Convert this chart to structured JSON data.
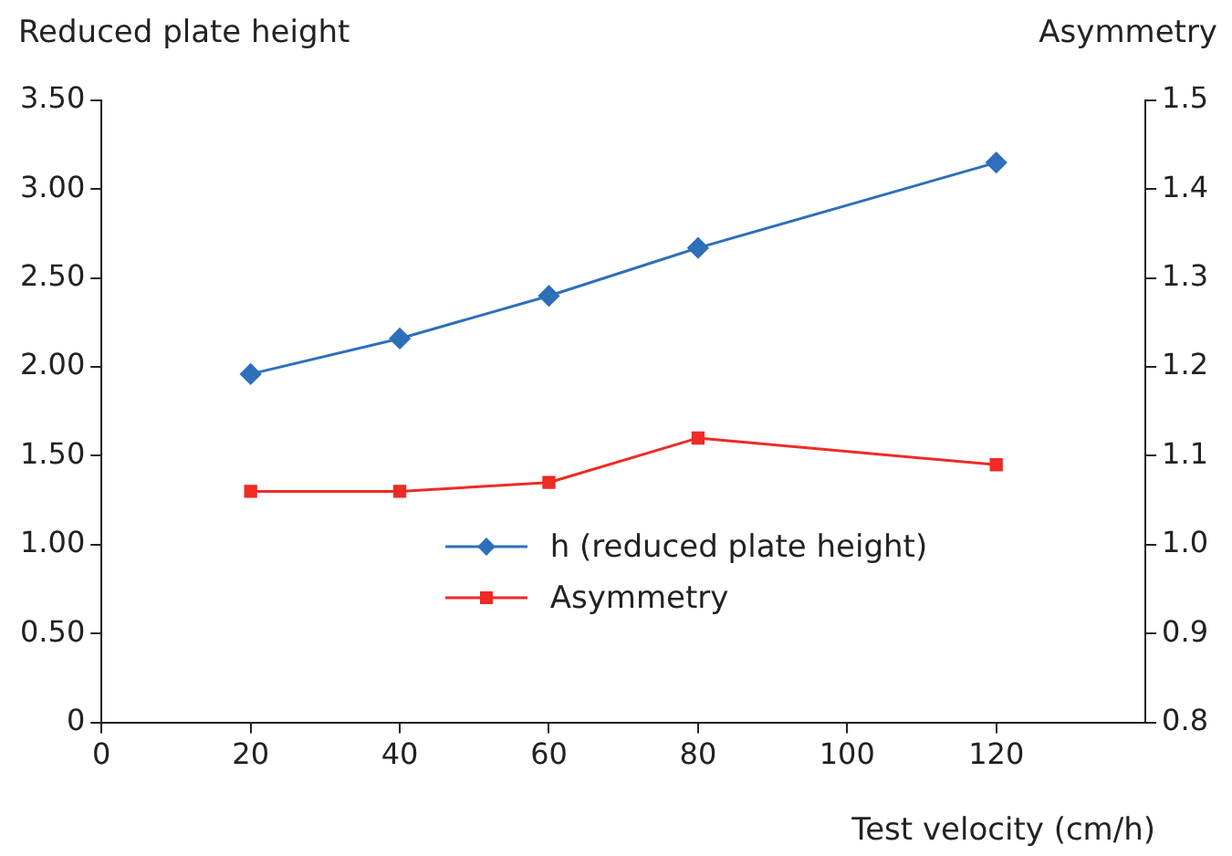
{
  "chart_data": {
    "type": "line",
    "x": [
      20,
      40,
      60,
      80,
      120
    ],
    "series": [
      {
        "name": "h (reduced plate height)",
        "color": "#2e6fba",
        "marker": "diamond",
        "values": [
          1.96,
          2.16,
          2.4,
          2.67,
          3.15
        ]
      },
      {
        "name": "Asymmetry",
        "color": "#ee2b24",
        "marker": "square",
        "axis": "y2",
        "values": [
          1.06,
          1.06,
          1.07,
          1.12,
          1.09
        ]
      }
    ],
    "xlabel": "Test velocity (cm/h)",
    "ylabel": "Reduced plate height",
    "y2label": "Asymmetry",
    "xlim": [
      0,
      140
    ],
    "xticks": [
      0,
      20,
      40,
      60,
      80,
      100,
      120
    ],
    "ylim": [
      0,
      3.5
    ],
    "yticks": [
      0,
      {
        "value": 0.5,
        "label": "0.50"
      },
      {
        "value": 1,
        "label": "1.00"
      },
      {
        "value": 1.5,
        "label": "1.50"
      },
      {
        "value": 2,
        "label": "2.00"
      },
      {
        "value": 2.5,
        "label": "2.50"
      },
      {
        "value": 3,
        "label": "3.00"
      },
      {
        "value": 3.5,
        "label": "3.50"
      }
    ],
    "y2lim": [
      0.8,
      1.5
    ],
    "y2ticks": [
      {
        "value": 0.8,
        "label": "0.8"
      },
      {
        "value": 0.9,
        "label": "0.9"
      },
      {
        "value": 1,
        "label": "1.0"
      },
      {
        "value": 1.1,
        "label": "1.1"
      },
      {
        "value": 1.2,
        "label": "1.2"
      },
      {
        "value": 1.3,
        "label": "1.3"
      },
      {
        "value": 1.4,
        "label": "1.4"
      },
      {
        "value": 1.5,
        "label": "1.5"
      }
    ],
    "grid": false,
    "legend": "bottom",
    "line_style": "solid"
  }
}
